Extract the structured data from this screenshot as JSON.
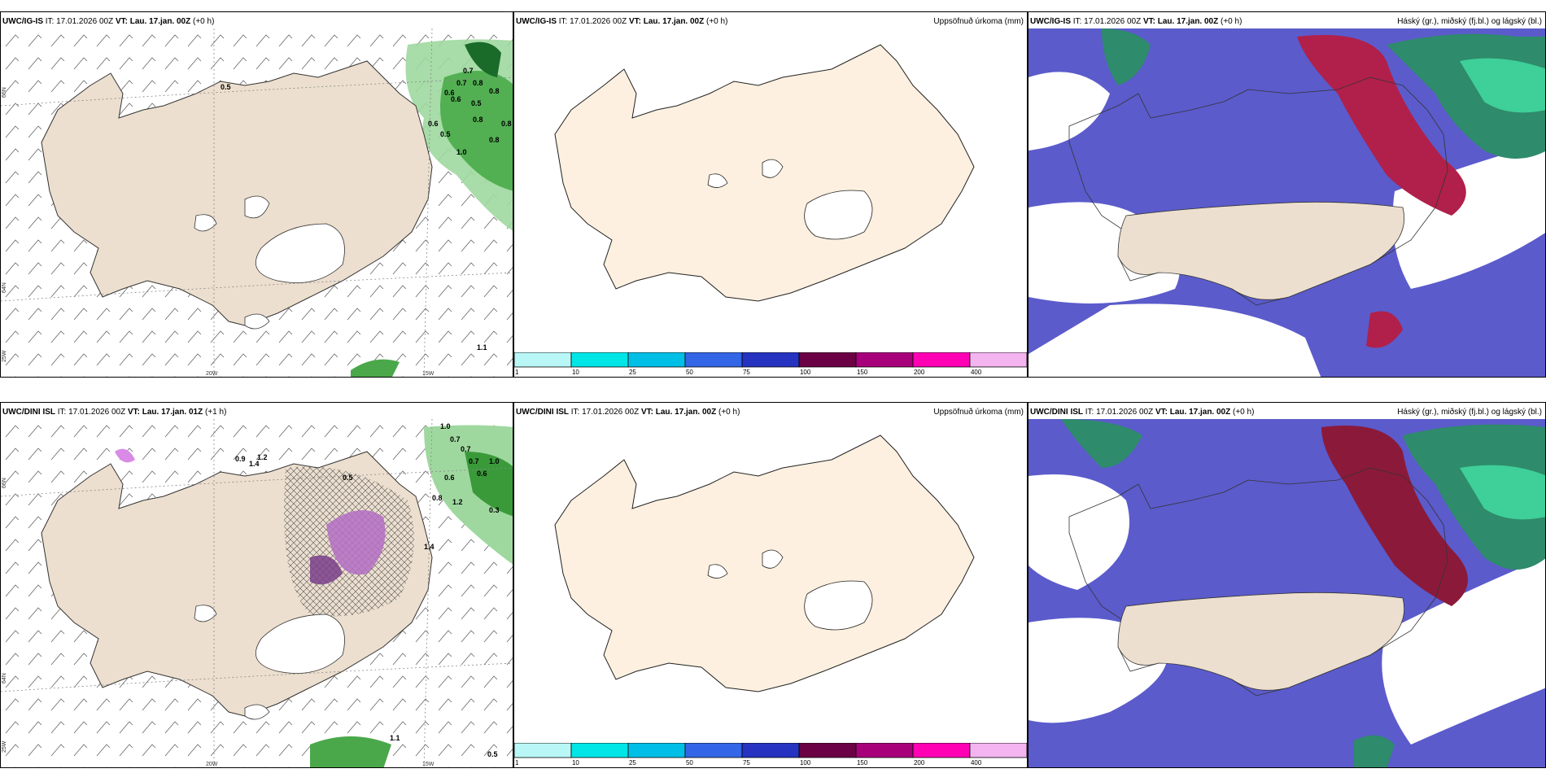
{
  "rows": [
    {
      "panels": [
        {
          "model": "UWC/IG-IS",
          "it": "IT: 17.01.2026 00Z",
          "vt_label": "VT:",
          "vt_value": "Lau. 17.jan. 00Z",
          "lead": "(+0 h)",
          "right_title": ""
        },
        {
          "model": "UWC/IG-IS",
          "it": "IT: 17.01.2026 00Z",
          "vt_label": "VT:",
          "vt_value": "Lau. 17.jan. 00Z",
          "lead": "(+0 h)",
          "right_title": "Uppsöfnuð úrkoma (mm)"
        },
        {
          "model": "UWC/IG-IS",
          "it": "IT: 17.01.2026 00Z",
          "vt_label": "VT:",
          "vt_value": "Lau. 17.jan. 00Z",
          "lead": "(+0 h)",
          "right_title": "Háský (gr.), miðský (fj.bl.) og lágský (bl.)"
        }
      ]
    },
    {
      "panels": [
        {
          "model": "UWC/DINI ISL",
          "it": "IT: 17.01.2026 00Z",
          "vt_label": "VT:",
          "vt_value": "Lau. 17.jan. 01Z",
          "lead": "(+1 h)",
          "right_title": ""
        },
        {
          "model": "UWC/DINI ISL",
          "it": "IT: 17.01.2026 00Z",
          "vt_label": "VT:",
          "vt_value": "Lau. 17.jan. 00Z",
          "lead": "(+0 h)",
          "right_title": "Uppsöfnuð úrkoma (mm)"
        },
        {
          "model": "UWC/DINI ISL",
          "it": "IT: 17.01.2026 00Z",
          "vt_label": "VT:",
          "vt_value": "Lau. 17.jan. 00Z",
          "lead": "(+0 h)",
          "right_title": "Háský (gr.), miðský (fj.bl.) og lágský (bl.)"
        }
      ]
    }
  ],
  "grid_labels": {
    "lat_66": "66N",
    "lat_64": "64N",
    "lon_25": "25W",
    "lon_20": "20W",
    "lon_15": "15W"
  },
  "precip_values_top": [
    "0.5",
    "0.7",
    "0.7",
    "0.8",
    "0.6",
    "0.6",
    "0.8",
    "0.5",
    "0.8",
    "0.6",
    "0.5",
    "0.8",
    "1.0",
    "1.1",
    "0.8"
  ],
  "precip_values_bottom": [
    "0.9",
    "1.2",
    "1.4",
    "1.0",
    "0.7",
    "0.7",
    "0.7",
    "1.0",
    "0.6",
    "0.6",
    "0.8",
    "1.2",
    "0.3",
    "1.4",
    "0.5",
    "1.1",
    "0.5"
  ],
  "colorbar": {
    "ticks": [
      "1",
      "10",
      "25",
      "50",
      "75",
      "100",
      "150",
      "200",
      "400"
    ],
    "colors": [
      "#b9f7f7",
      "#00e6e6",
      "#00bfe6",
      "#3366e6",
      "#2633c0",
      "#6b0044",
      "#a8007a",
      "#ff00b4",
      "#f4b4f0"
    ]
  }
}
